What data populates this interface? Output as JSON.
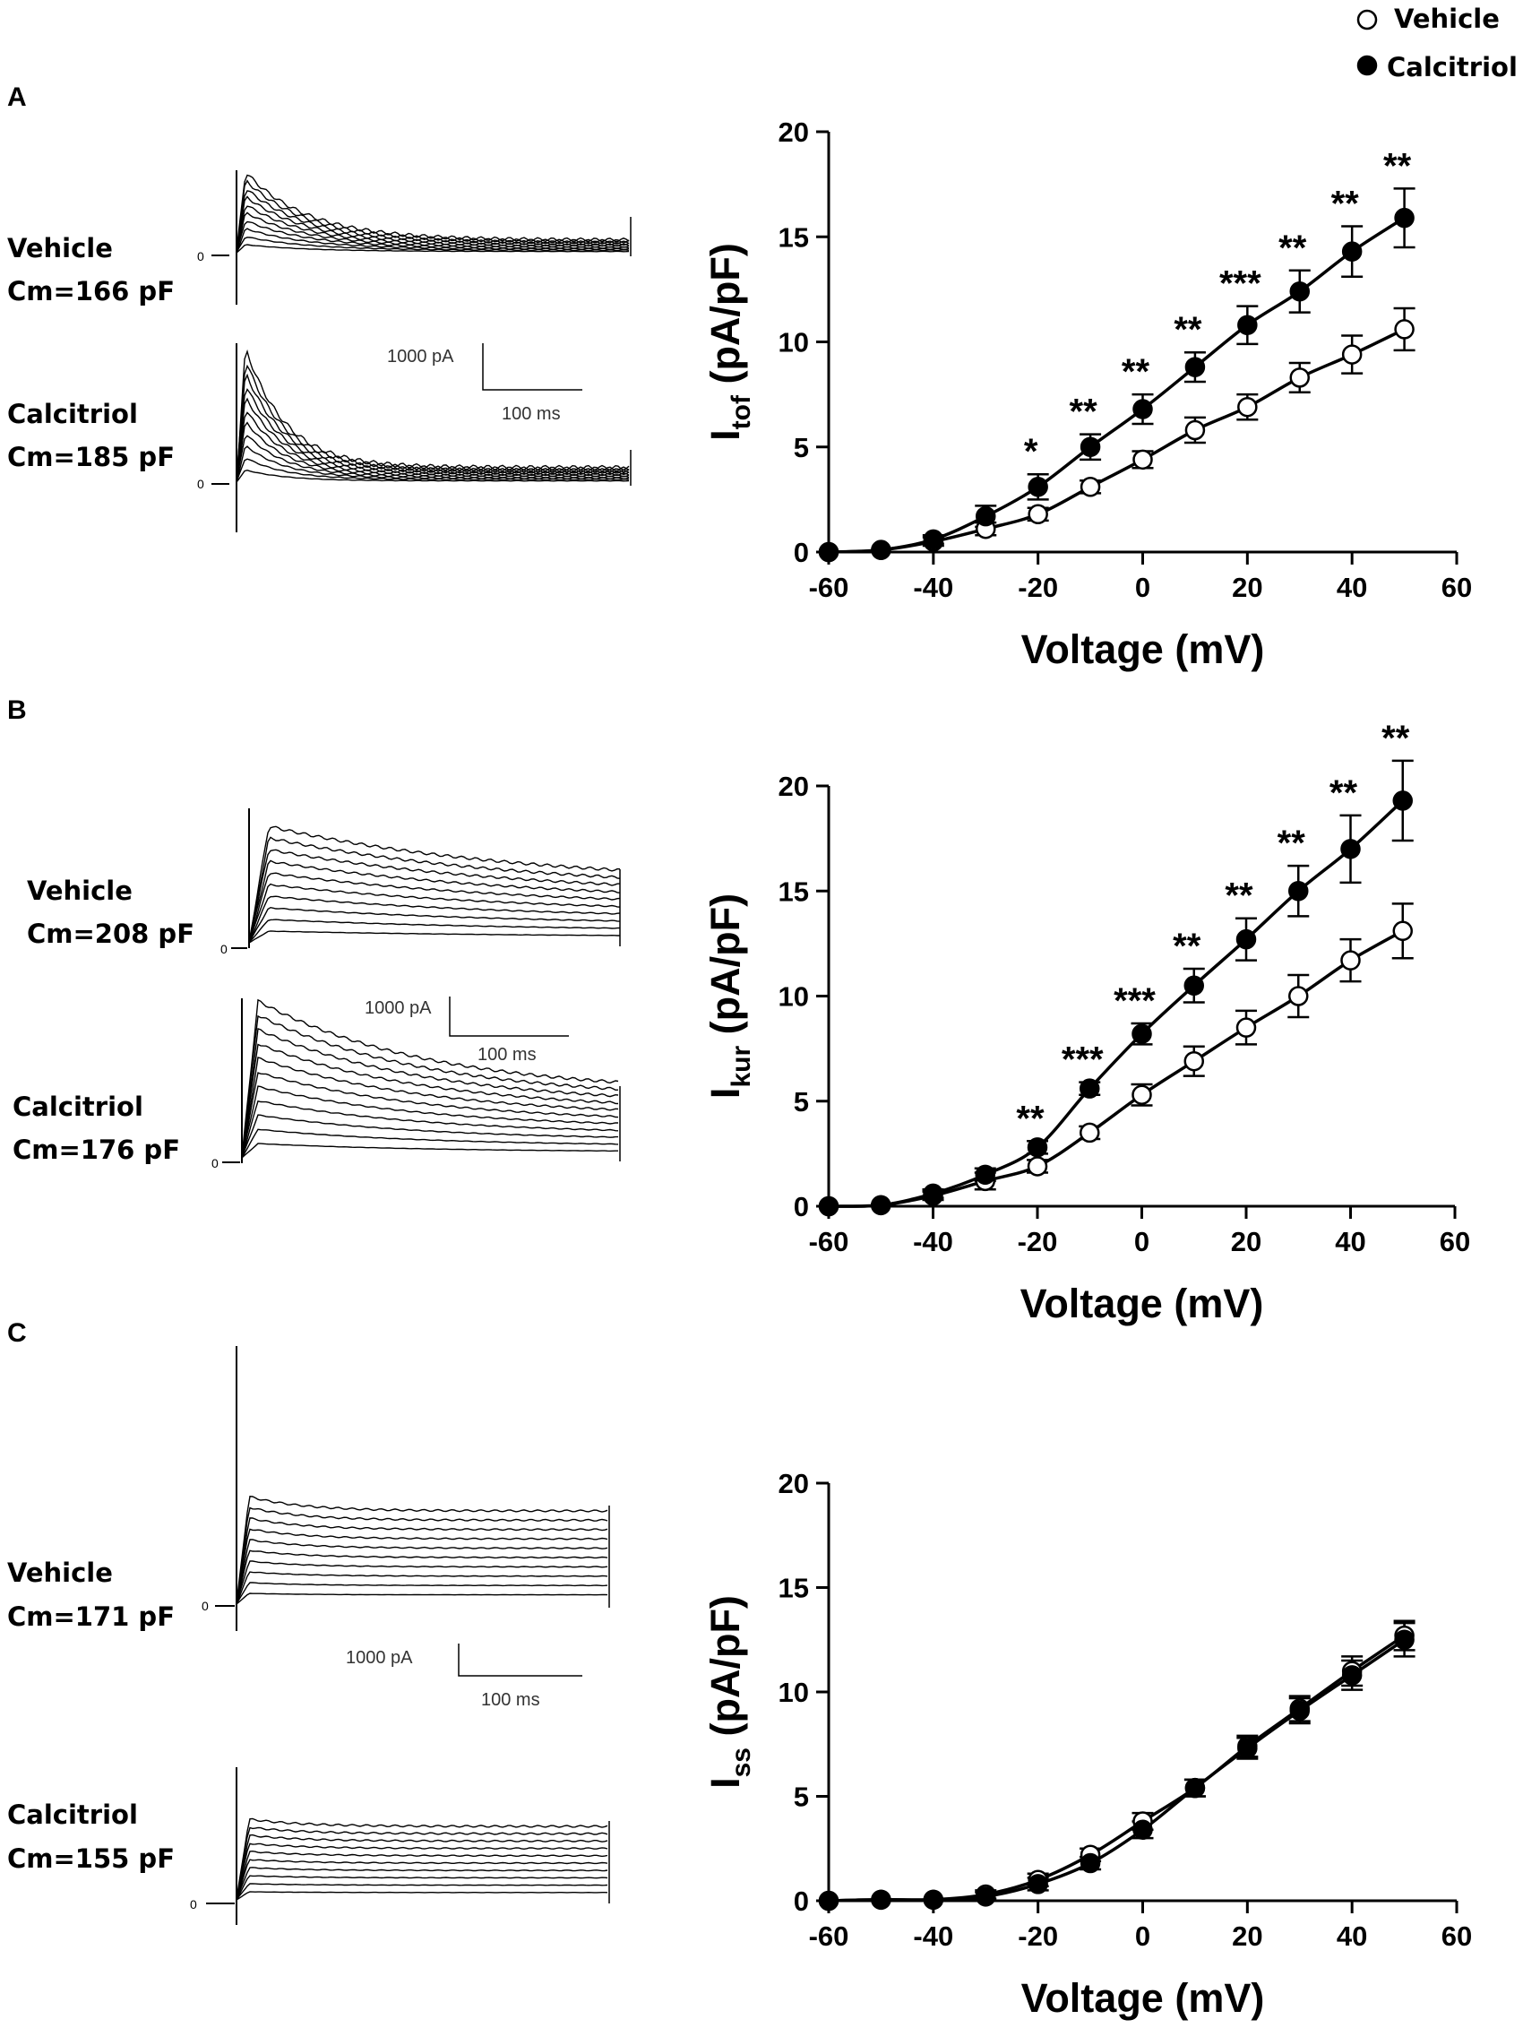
{
  "legend": {
    "vehicle": "Vehicle",
    "calcitriol": "Calcitriol"
  },
  "panels": [
    {
      "letter": "A",
      "traces": {
        "vehicle": {
          "name": "Vehicle",
          "cm": "Cm=166 pF"
        },
        "calcitriol": {
          "name": "Calcitriol",
          "cm": "Cm=185 pF"
        },
        "zero_label": "0",
        "scale_current": "1000 pA",
        "scale_time": "100 ms"
      }
    },
    {
      "letter": "B",
      "traces": {
        "vehicle": {
          "name": "Vehicle",
          "cm": "Cm=208 pF"
        },
        "calcitriol": {
          "name": "Calcitriol",
          "cm": "Cm=176 pF"
        },
        "zero_label": "0",
        "scale_current": "1000 pA",
        "scale_time": "100 ms"
      }
    },
    {
      "letter": "C",
      "traces": {
        "vehicle": {
          "name": "Vehicle",
          "cm": "Cm=171 pF"
        },
        "calcitriol": {
          "name": "Calcitriol",
          "cm": "Cm=155 pF"
        },
        "zero_label": "0",
        "scale_current": "1000 pA",
        "scale_time": "100 ms"
      }
    }
  ],
  "chart_data": [
    {
      "type": "line",
      "title": "",
      "xlabel": "Voltage (mV)",
      "ylabel_main": "I",
      "ylabel_sub": "tof",
      "ylabel_tail": " (pA/pF)",
      "xlim": [
        -60,
        60
      ],
      "ylim": [
        0,
        20
      ],
      "xticks": [
        -60,
        -40,
        -20,
        0,
        20,
        40,
        60
      ],
      "yticks": [
        0,
        5,
        10,
        15,
        20
      ],
      "x": [
        -60,
        -50,
        -40,
        -30,
        -20,
        -10,
        0,
        10,
        20,
        30,
        40,
        50
      ],
      "series": [
        {
          "name": "Vehicle",
          "marker": "open-circle",
          "values": [
            0,
            0.1,
            0.5,
            1.1,
            1.8,
            3.1,
            4.4,
            5.8,
            6.9,
            8.3,
            9.4,
            10.6
          ],
          "errors": [
            0,
            0.1,
            0.2,
            0.3,
            0.3,
            0.3,
            0.4,
            0.6,
            0.6,
            0.7,
            0.9,
            1.0
          ]
        },
        {
          "name": "Calcitriol",
          "marker": "filled-circle",
          "values": [
            0,
            0.1,
            0.6,
            1.7,
            3.1,
            5.0,
            6.8,
            8.8,
            10.8,
            12.4,
            14.3,
            15.9
          ],
          "errors": [
            0,
            0.1,
            0.2,
            0.5,
            0.6,
            0.6,
            0.7,
            0.7,
            0.9,
            1.0,
            1.2,
            1.4
          ]
        }
      ],
      "significance": [
        {
          "x": -20,
          "label": "*"
        },
        {
          "x": -10,
          "label": "**"
        },
        {
          "x": 0,
          "label": "**"
        },
        {
          "x": 10,
          "label": "**"
        },
        {
          "x": 20,
          "label": "***"
        },
        {
          "x": 30,
          "label": "**"
        },
        {
          "x": 40,
          "label": "**"
        },
        {
          "x": 50,
          "label": "**"
        }
      ]
    },
    {
      "type": "line",
      "title": "",
      "xlabel": "Voltage (mV)",
      "ylabel_main": "I",
      "ylabel_sub": "kur",
      "ylabel_tail": " (pA/pF)",
      "xlim": [
        -60,
        60
      ],
      "ylim": [
        0,
        20
      ],
      "xticks": [
        -60,
        -40,
        -20,
        0,
        20,
        40,
        60
      ],
      "yticks": [
        0,
        5,
        10,
        15,
        20
      ],
      "x": [
        -60,
        -50,
        -40,
        -30,
        -20,
        -10,
        0,
        10,
        20,
        30,
        40,
        50
      ],
      "series": [
        {
          "name": "Vehicle",
          "marker": "open-circle",
          "values": [
            0,
            0.05,
            0.5,
            1.2,
            1.9,
            3.5,
            5.3,
            6.9,
            8.5,
            10.0,
            11.7,
            13.1
          ],
          "errors": [
            0,
            0.1,
            0.2,
            0.4,
            0.3,
            0.3,
            0.5,
            0.7,
            0.8,
            1.0,
            1.0,
            1.3
          ]
        },
        {
          "name": "Calcitriol",
          "marker": "filled-circle",
          "values": [
            0,
            0.05,
            0.6,
            1.5,
            2.8,
            5.6,
            8.2,
            10.5,
            12.7,
            15.0,
            17.0,
            19.3
          ],
          "errors": [
            0,
            0.1,
            0.2,
            0.3,
            0.3,
            0.3,
            0.5,
            0.8,
            1.0,
            1.2,
            1.6,
            1.9
          ]
        }
      ],
      "significance": [
        {
          "x": -20,
          "label": "**"
        },
        {
          "x": -10,
          "label": "***"
        },
        {
          "x": 0,
          "label": "***"
        },
        {
          "x": 10,
          "label": "**"
        },
        {
          "x": 20,
          "label": "**"
        },
        {
          "x": 30,
          "label": "**"
        },
        {
          "x": 40,
          "label": "**"
        },
        {
          "x": 50,
          "label": "**"
        }
      ]
    },
    {
      "type": "line",
      "title": "",
      "xlabel": "Voltage (mV)",
      "ylabel_main": "I",
      "ylabel_sub": "ss",
      "ylabel_tail": " (pA/pF)",
      "xlim": [
        -60,
        60
      ],
      "ylim": [
        0,
        20
      ],
      "xticks": [
        -60,
        -40,
        -20,
        0,
        20,
        40,
        60
      ],
      "yticks": [
        0,
        5,
        10,
        15,
        20
      ],
      "x": [
        -60,
        -50,
        -40,
        -30,
        -20,
        -10,
        0,
        10,
        20,
        30,
        40,
        50
      ],
      "series": [
        {
          "name": "Vehicle",
          "marker": "open-circle",
          "values": [
            0,
            0.05,
            0.05,
            0.3,
            1.0,
            2.2,
            3.8,
            5.4,
            7.4,
            9.2,
            11.0,
            12.7
          ],
          "errors": [
            0,
            0.05,
            0.1,
            0.2,
            0.3,
            0.3,
            0.4,
            0.4,
            0.5,
            0.6,
            0.7,
            0.7
          ]
        },
        {
          "name": "Calcitriol",
          "marker": "filled-circle",
          "values": [
            0,
            0.05,
            0.05,
            0.2,
            0.8,
            1.8,
            3.4,
            5.4,
            7.3,
            9.1,
            10.8,
            12.5
          ],
          "errors": [
            0,
            0.05,
            0.1,
            0.2,
            0.3,
            0.3,
            0.4,
            0.4,
            0.5,
            0.6,
            0.7,
            0.8
          ]
        }
      ],
      "significance": []
    }
  ]
}
